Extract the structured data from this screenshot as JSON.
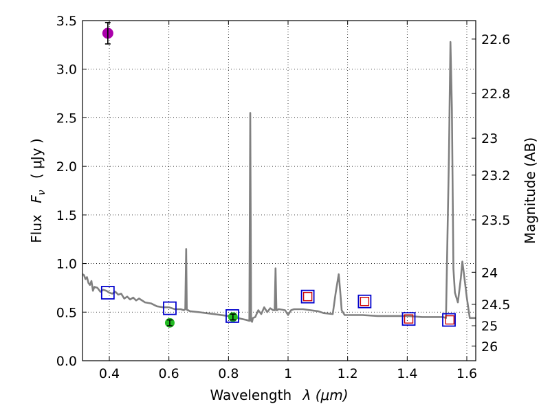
{
  "chart_data": {
    "type": "line",
    "xlabel_text": "Wavelength",
    "xlabel_math": "λ (μm)",
    "ylabel_text": "Flux",
    "ylabel_math": "F",
    "ylabel_sub": "ν",
    "ylabel_unit": "( μJy )",
    "y2label": "Magnitude (AB)",
    "xlim": [
      0.31,
      1.63
    ],
    "ylim": [
      0.0,
      3.5
    ],
    "x_ticks": [
      0.4,
      0.6,
      0.8,
      1.0,
      1.2,
      1.4,
      1.6
    ],
    "x_tick_labels": [
      "0.4",
      "0.6",
      "0.8",
      "1",
      "1.2",
      "1.4",
      "1.6"
    ],
    "y_ticks": [
      0.0,
      0.5,
      1.0,
      1.5,
      2.0,
      2.5,
      3.0,
      3.5
    ],
    "y_tick_labels": [
      "0.0",
      "0.5",
      "1.0",
      "1.5",
      "2.0",
      "2.5",
      "3.0",
      "3.5"
    ],
    "y2_ticks": [
      {
        "label": "22.6",
        "flux": 3.31
      },
      {
        "label": "22.8",
        "flux": 2.75
      },
      {
        "label": "23",
        "flux": 2.29
      },
      {
        "label": "23.2",
        "flux": 1.91
      },
      {
        "label": "23.5",
        "flux": 1.45
      },
      {
        "label": "24",
        "flux": 0.91
      },
      {
        "label": "24.5",
        "flux": 0.58
      },
      {
        "label": "25",
        "flux": 0.36
      },
      {
        "label": "26",
        "flux": 0.15
      }
    ],
    "grid": true,
    "colors": {
      "sed": "#808080",
      "model_box": "#0000cc",
      "observed_box": "#cc0000",
      "magenta_point": "#aa00aa",
      "green_point": "#22bb22",
      "errorbar": "#000000"
    },
    "series": [
      {
        "name": "SED model",
        "x": [
          0.31,
          0.315,
          0.32,
          0.325,
          0.33,
          0.335,
          0.34,
          0.345,
          0.35,
          0.36,
          0.37,
          0.38,
          0.39,
          0.4,
          0.41,
          0.42,
          0.43,
          0.44,
          0.45,
          0.46,
          0.47,
          0.48,
          0.49,
          0.5,
          0.52,
          0.54,
          0.56,
          0.58,
          0.6,
          0.62,
          0.64,
          0.65,
          0.655,
          0.658,
          0.66,
          0.662,
          0.665,
          0.67,
          0.7,
          0.75,
          0.8,
          0.83,
          0.86,
          0.87,
          0.873,
          0.876,
          0.879,
          0.882,
          0.89,
          0.9,
          0.91,
          0.92,
          0.93,
          0.94,
          0.95,
          0.955,
          0.958,
          0.961,
          0.964,
          0.967,
          0.97,
          0.99,
          1.0,
          1.01,
          1.02,
          1.05,
          1.1,
          1.12,
          1.15,
          1.16,
          1.17,
          1.175,
          1.18,
          1.19,
          1.2,
          1.25,
          1.3,
          1.35,
          1.4,
          1.45,
          1.5,
          1.52,
          1.53,
          1.54,
          1.545,
          1.55,
          1.555,
          1.56,
          1.57,
          1.58,
          1.585,
          1.59,
          1.6,
          1.61,
          1.63
        ],
        "y": [
          0.89,
          0.88,
          0.84,
          0.86,
          0.8,
          0.78,
          0.82,
          0.72,
          0.76,
          0.75,
          0.71,
          0.73,
          0.72,
          0.7,
          0.69,
          0.71,
          0.68,
          0.69,
          0.64,
          0.66,
          0.63,
          0.65,
          0.62,
          0.64,
          0.6,
          0.59,
          0.56,
          0.55,
          0.55,
          0.53,
          0.53,
          0.52,
          0.53,
          1.15,
          0.53,
          0.52,
          0.52,
          0.51,
          0.5,
          0.48,
          0.46,
          0.44,
          0.42,
          0.41,
          2.55,
          0.41,
          0.4,
          0.44,
          0.45,
          0.52,
          0.48,
          0.55,
          0.5,
          0.54,
          0.52,
          0.52,
          0.95,
          0.52,
          0.52,
          0.53,
          0.53,
          0.52,
          0.47,
          0.52,
          0.53,
          0.53,
          0.51,
          0.49,
          0.48,
          0.7,
          0.89,
          0.72,
          0.52,
          0.47,
          0.47,
          0.47,
          0.46,
          0.46,
          0.46,
          0.45,
          0.45,
          0.45,
          0.44,
          2.1,
          3.28,
          2.6,
          0.95,
          0.7,
          0.6,
          0.85,
          1.02,
          0.9,
          0.65,
          0.44,
          0.44
        ]
      },
      {
        "name": "Model photometry (blue squares)",
        "x": [
          0.395,
          0.603,
          0.813,
          1.066,
          1.257,
          1.405,
          1.54
        ],
        "y": [
          0.7,
          0.54,
          0.46,
          0.66,
          0.61,
          0.43,
          0.42
        ]
      },
      {
        "name": "Observed photometry (red squares)",
        "x": [
          1.066,
          1.257,
          1.405,
          1.543
        ],
        "y": [
          0.66,
          0.61,
          0.43,
          0.42
        ]
      },
      {
        "name": "Magenta point",
        "x": [
          0.395
        ],
        "y": [
          3.37
        ],
        "yerr": [
          0.11
        ]
      },
      {
        "name": "Green points",
        "x": [
          0.603,
          0.815
        ],
        "y": [
          0.39,
          0.45
        ],
        "yerr": [
          0.03,
          0.03
        ]
      }
    ]
  }
}
